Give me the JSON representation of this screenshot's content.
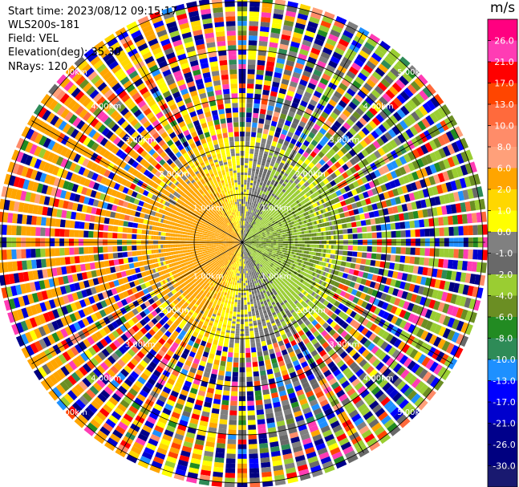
{
  "header": {
    "start_time": "Start time: 2023/08/12 09:15:17",
    "instrument": "WLS200s-181",
    "field": "Field: VEL",
    "elevation": "Elevation(deg): 35.30",
    "nrays": "NRays: 120"
  },
  "colorbar": {
    "unit": "m/s",
    "ticks": [
      "26.0",
      "21.0",
      "17.0",
      "13.0",
      "10.0",
      "8.0",
      "6.0",
      "2.0",
      "1.0",
      "0.0",
      "-1.0",
      "-2.0",
      "-4.0",
      "-6.0",
      "-8.0",
      "-10.0",
      "-13.0",
      "-17.0",
      "-21.0",
      "-26.0",
      "-30.0"
    ],
    "colors": [
      "#ff0080",
      "#ff3cb4",
      "#ff0000",
      "#ff4500",
      "#ff6a3c",
      "#ff8c69",
      "#ffa07a",
      "#ffa500",
      "#ffd700",
      "#ffff00",
      "#808080",
      "#696969",
      "#9acd32",
      "#6b8e23",
      "#228b22",
      "#2e8b57",
      "#1e90ff",
      "#0000ff",
      "#0000cd",
      "#00008b",
      "#000080",
      "#191970"
    ]
  },
  "chart_data": {
    "type": "heatmap",
    "projection": "polar PPI",
    "field": "VEL",
    "unit": "m/s",
    "range_rings_km": [
      1.0,
      2.0,
      3.0,
      4.0,
      5.0
    ],
    "range_ring_labels": [
      "1.00km",
      "2.00km",
      "3.00km",
      "4.00km",
      "5.00km"
    ],
    "nrays": 120,
    "azimuth_step_deg": 3,
    "elevation_deg": 35.3,
    "value_range": [
      -30.0,
      26.0
    ],
    "pattern": {
      "inner_radius_km": 2.0,
      "west_half_near_range": "positive (1 to 6 m/s, yellow/orange)",
      "east_half_near_range": "negative (-2 to -6 m/s, green)",
      "north_south_axis": "near zero (grey)",
      "outer_range": "noise, full color scale"
    }
  }
}
